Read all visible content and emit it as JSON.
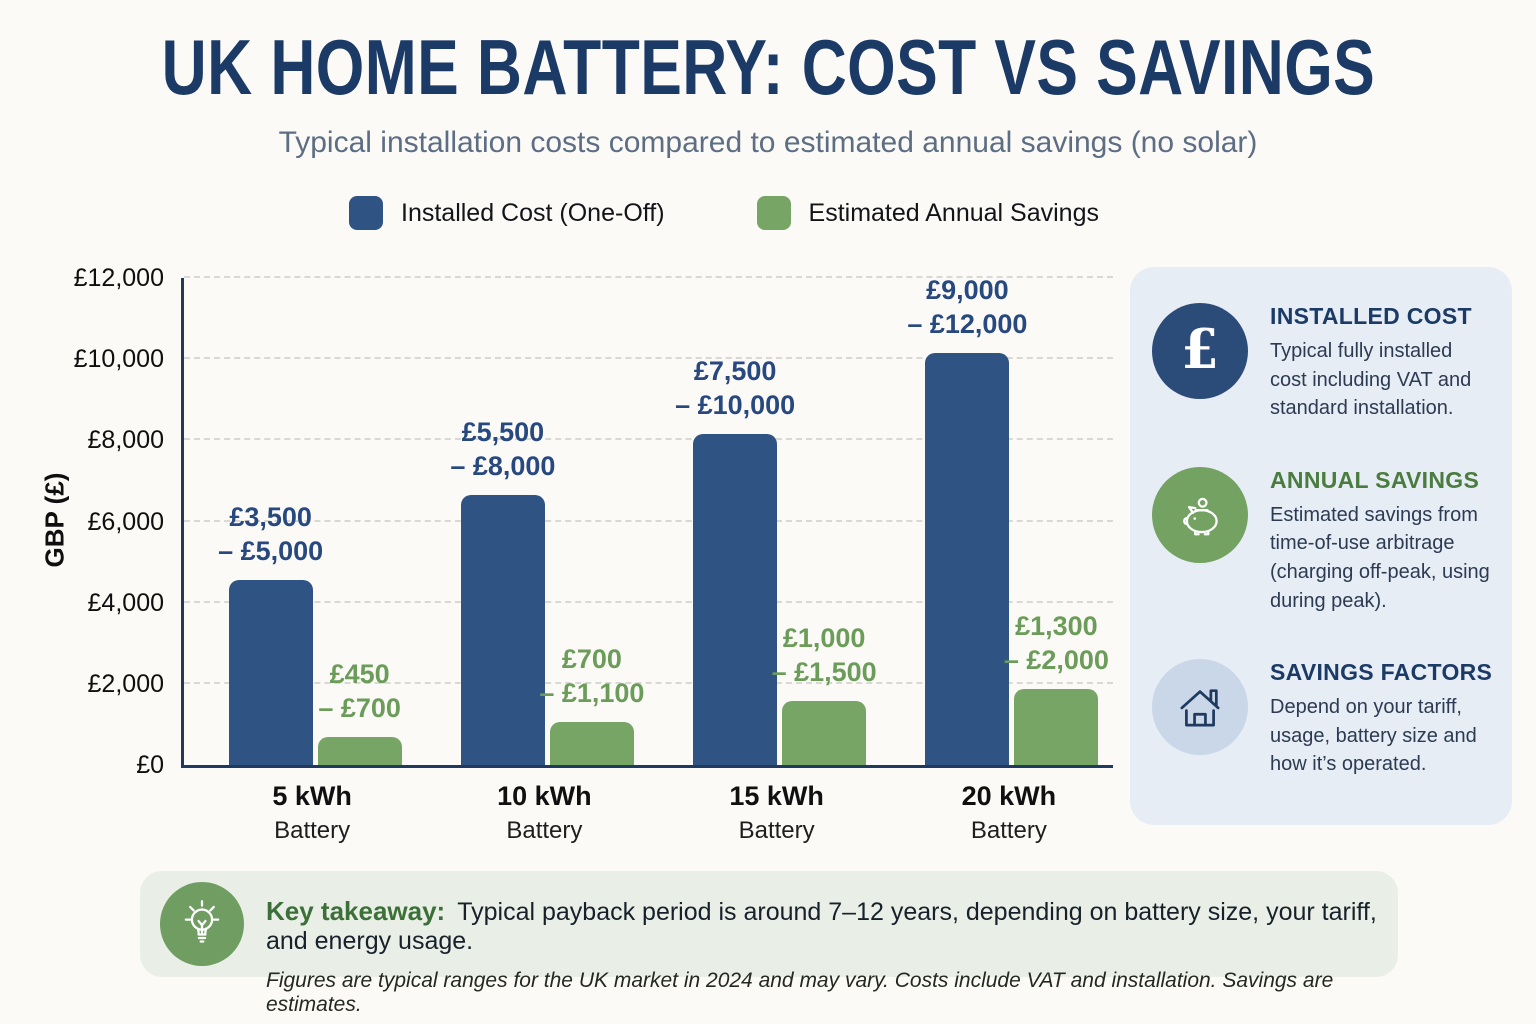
{
  "title": "UK HOME BATTERY: COST VS SAVINGS",
  "subtitle": "Typical installation costs compared to estimated annual savings (no solar)",
  "colors": {
    "title_navy": "#1B3A66",
    "bar_blue": "#2F5383",
    "bar_green": "#77A566",
    "blue_label": "#27497F",
    "green_label": "#6C9C59",
    "axis": "#20395E",
    "sidebar_bg": "#E7EDF5",
    "takeaway_bg": "#E9EFE6"
  },
  "legend": [
    {
      "label": "Installed Cost (One-Off)",
      "color": "#2F5383"
    },
    {
      "label": "Estimated Annual Savings",
      "color": "#77A566"
    }
  ],
  "chart_data": {
    "type": "bar",
    "title": "UK HOME BATTERY: COST VS SAVINGS",
    "xlabel": "",
    "ylabel": "GBP (£)",
    "ylim": [
      0,
      12000
    ],
    "ytick_step": 2000,
    "ytick_labels": [
      "£0",
      "£2,000",
      "£4,000",
      "£6,000",
      "£8,000",
      "£10,000",
      "£12,000"
    ],
    "grid": "horizontal-dashed",
    "legend_position": "top",
    "categories": [
      [
        "5 kWh",
        "Battery"
      ],
      [
        "10 kWh",
        "Battery"
      ],
      [
        "15 kWh",
        "Battery"
      ],
      [
        "20 kWh",
        "Battery"
      ]
    ],
    "series": [
      {
        "name": "Installed Cost (One-Off)",
        "color": "#2F5383",
        "label_color": "#27497F",
        "values": [
          4550,
          6650,
          8150,
          10150
        ],
        "range_low": [
          3500,
          5500,
          7500,
          9000
        ],
        "range_high": [
          5000,
          8000,
          10000,
          12000
        ],
        "range_labels": [
          [
            "£3,500",
            "– £5,000"
          ],
          [
            "£5,500",
            "– £8,000"
          ],
          [
            "£7,500",
            "– £10,000"
          ],
          [
            "£9,000",
            "– £12,000"
          ]
        ]
      },
      {
        "name": "Estimated Annual Savings",
        "color": "#77A566",
        "label_color": "#6C9C59",
        "values": [
          680,
          1060,
          1570,
          1870
        ],
        "range_low": [
          450,
          700,
          1000,
          1300
        ],
        "range_high": [
          700,
          1100,
          1500,
          2000
        ],
        "range_labels": [
          [
            "£450",
            "– £700"
          ],
          [
            "£700",
            "– £1,100"
          ],
          [
            "£1,000",
            "– £1,500"
          ],
          [
            "£1,300",
            "– £2,000"
          ]
        ]
      }
    ]
  },
  "sidebar": {
    "items": [
      {
        "icon": "pound-sterling-icon",
        "heading": "INSTALLED COST",
        "heading_color": "#1B3A66",
        "circle_color": "#2B4B79",
        "body": "Typical fully installed cost including VAT and standard installation."
      },
      {
        "icon": "piggy-bank-icon",
        "heading": "ANNUAL SAVINGS",
        "heading_color": "#4A7C40",
        "circle_color": "#74A263",
        "body": "Estimated savings from time-of-use arbitrage (charging off-peak, using during peak)."
      },
      {
        "icon": "house-icon",
        "heading": "SAVINGS FACTORS",
        "heading_color": "#1B3A66",
        "circle_color": "#C9D7E9",
        "body": "Depend on your tariff, usage, battery size and how it’s operated."
      }
    ]
  },
  "takeaway": {
    "icon": "lightbulb-icon",
    "circle_color": "#6F9D62",
    "label": "Key takeaway:",
    "label_color": "#3C7038",
    "text": "Typical payback period is around 7–12 years, depending on battery size, your tariff, and energy usage.",
    "footnote": "Figures are typical ranges for the UK market in 2024 and may vary. Costs include VAT and installation. Savings are estimates."
  }
}
